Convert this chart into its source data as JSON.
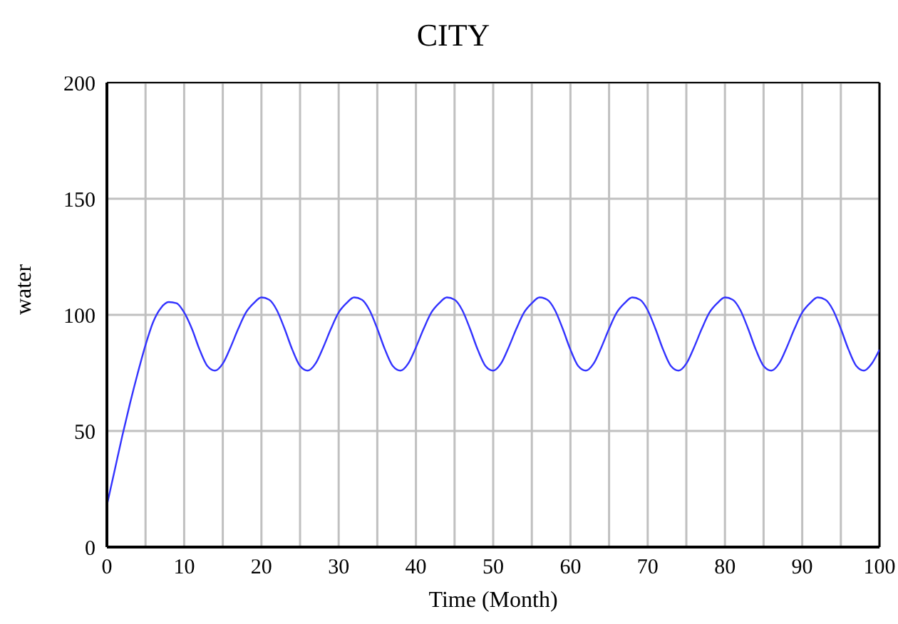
{
  "chart_data": {
    "type": "line",
    "title": "CITY",
    "xlabel": "Time (Month)",
    "ylabel": "water",
    "x": [
      0,
      1,
      2,
      3,
      4,
      5,
      6,
      7,
      8,
      9,
      10,
      11,
      12,
      13,
      14,
      15,
      16,
      17,
      18,
      19,
      20,
      21,
      22,
      23,
      24,
      25,
      26,
      27,
      28,
      29,
      30,
      31,
      32,
      33,
      34,
      35,
      36,
      37,
      38,
      39,
      40,
      41,
      42,
      43,
      44,
      45,
      46,
      47,
      48,
      49,
      50,
      51,
      52,
      53,
      54,
      55,
      56,
      57,
      58,
      59,
      60,
      61,
      62,
      63,
      64,
      65,
      66,
      67,
      68,
      69,
      70,
      71,
      72,
      73,
      74,
      75,
      76,
      77,
      78,
      79,
      80,
      81,
      82,
      83,
      84,
      85,
      86,
      87,
      88,
      89,
      90,
      91,
      92,
      93,
      94,
      95,
      96,
      97,
      98,
      99,
      100
    ],
    "series": [
      {
        "color": "#3333ff",
        "values": [
          18,
          33,
          48,
          62,
          75,
          87,
          97,
          103,
          105.5,
          105,
          101,
          94,
          85,
          78,
          76,
          79,
          86,
          94,
          101,
          105,
          107.5,
          106.5,
          102,
          94,
          85,
          78,
          76,
          79,
          86,
          94,
          101,
          105,
          107.5,
          106.5,
          102,
          94,
          85,
          78,
          76,
          79,
          86,
          94,
          101,
          105,
          107.5,
          106.5,
          102,
          94,
          85,
          78,
          76,
          79,
          86,
          94,
          101,
          105,
          107.5,
          106.5,
          102,
          94,
          85,
          78,
          76,
          79,
          86,
          94,
          101,
          105,
          107.5,
          106.5,
          102,
          94,
          85,
          78,
          76,
          79,
          86,
          94,
          101,
          105,
          107.5,
          106.5,
          102,
          94,
          85,
          78,
          76,
          79,
          86,
          94,
          101,
          105,
          107.5,
          106.5,
          102,
          94,
          85,
          78,
          76,
          79,
          85
        ]
      }
    ],
    "xlim": [
      0,
      100
    ],
    "xticks": [
      0,
      10,
      20,
      30,
      40,
      50,
      60,
      70,
      80,
      90,
      100
    ],
    "ylim": [
      0,
      200
    ],
    "yticks": [
      0,
      50,
      100,
      150,
      200
    ],
    "grid": true,
    "marker": "none",
    "line_style": "solid"
  }
}
